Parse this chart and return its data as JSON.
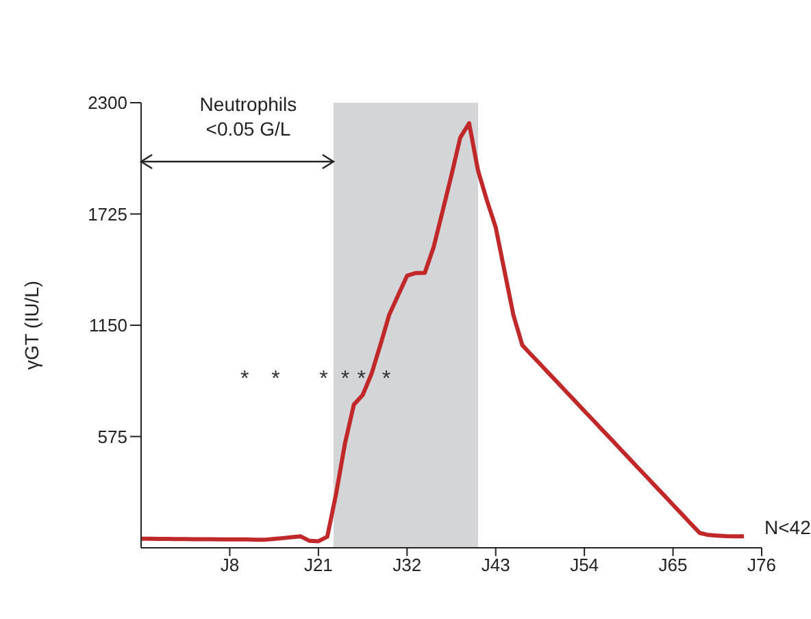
{
  "chart_data": {
    "type": "line",
    "ylabel": "γGT (IU/L)",
    "categories": [
      null,
      null,
      null,
      null,
      null,
      null,
      null,
      null,
      null,
      null,
      "J8",
      null,
      null,
      null,
      null,
      null,
      null,
      null,
      null,
      null,
      "J21",
      null,
      null,
      null,
      null,
      null,
      null,
      null,
      null,
      null,
      "J32",
      null,
      null,
      null,
      null,
      null,
      null,
      null,
      null,
      null,
      "J43",
      null,
      null,
      null,
      null,
      null,
      null,
      null,
      null,
      null,
      "J54",
      null,
      null,
      null,
      null,
      null,
      null,
      null,
      null,
      null,
      "J65",
      null,
      null,
      null,
      null,
      null,
      null,
      null,
      null,
      null,
      "J76"
    ],
    "series": [
      {
        "color": "#c0282a",
        "values": [
          47,
          47,
          46,
          46,
          45,
          45,
          44,
          44,
          44,
          43,
          43,
          43,
          43,
          42,
          42,
          46,
          50,
          55,
          59,
          36,
          34,
          57,
          280,
          540,
          740,
          790,
          900,
          1050,
          1206,
          1306,
          1406,
          1420,
          1421,
          1554,
          1738,
          1924,
          2120,
          2194,
          1950,
          1796,
          1656,
          1428,
          1202,
          1047,
          998,
          950,
          901,
          853,
          804,
          756,
          707,
          659,
          610,
          562,
          513,
          465,
          416,
          368,
          319,
          271,
          222,
          174,
          125,
          77,
          66,
          63,
          60,
          59,
          59,
          null,
          null
        ]
      }
    ],
    "ylim": [
      0,
      2300
    ],
    "yticks": [
      575,
      1150,
      1725,
      2300
    ],
    "annotations": [
      "Neutrophils <0.05 G/L",
      "*",
      "*",
      "*",
      "*",
      "*",
      "*",
      "N<42"
    ],
    "grid": false,
    "legend": false,
    "marker": "none",
    "line_style": "solid"
  }
}
